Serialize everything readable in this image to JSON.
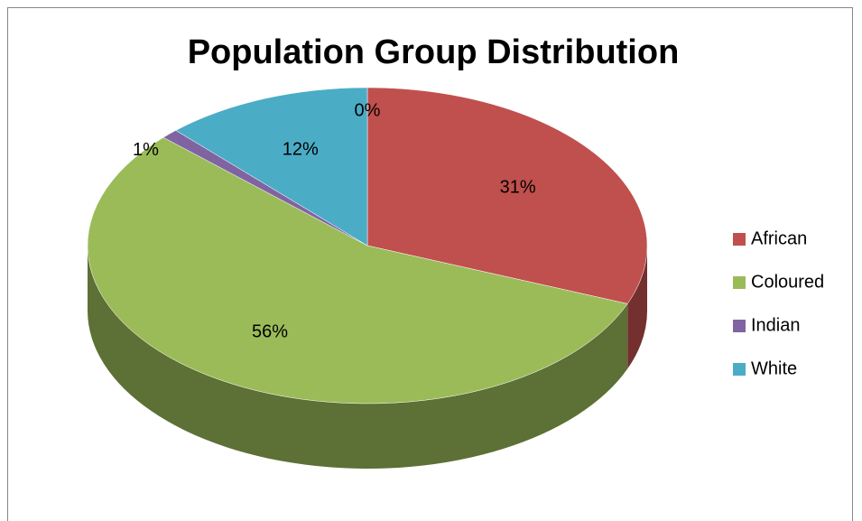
{
  "chart_data": {
    "type": "pie",
    "title": "Population Group Distribution",
    "categories": [
      "African",
      "Coloured",
      "Indian",
      "White",
      null
    ],
    "values": [
      31,
      56,
      1,
      12,
      0
    ],
    "value_labels": [
      "31%",
      "56%",
      "1%",
      "12%",
      "0%"
    ],
    "colors": [
      "#c0504d",
      "#9bbb59",
      "#8064a2",
      "#4bacc6"
    ],
    "legend": "right"
  }
}
